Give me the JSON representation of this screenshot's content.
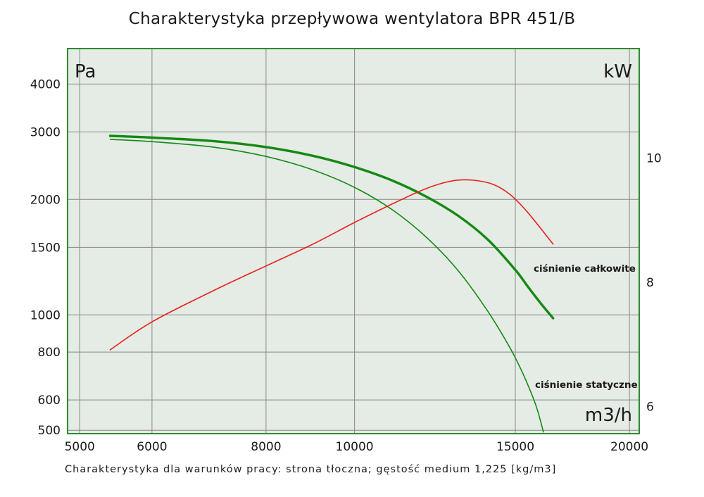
{
  "title": "Charakterystyka przepływowa wentylatora BPR 451/B",
  "footer": "Charakterystyka dla warunków pracy: strona tłoczna; gęstość medium 1,225 [kg/m3]",
  "colors": {
    "plot_background": "#e5ebe5",
    "frame": "#2e8b2e",
    "grid": "#888888",
    "total_pressure": "#138a13",
    "static_pressure": "#138a13",
    "power": "#e8211b"
  },
  "chart_data": {
    "type": "line",
    "title": "Charakterystyka przepływowa wentylatora BPR 451/B",
    "x_scale": "log",
    "y_scale": "log",
    "x_unit_label": "m3/h",
    "y_left_unit_label": "Pa",
    "y_right_unit_label": "kW",
    "xlim": [
      4850,
      20500
    ],
    "ylim": [
      490,
      4950
    ],
    "y2lim": [
      5.55,
      11.75
    ],
    "x_ticks": [
      5000,
      6000,
      8000,
      10000,
      15000,
      20000
    ],
    "x_tick_labels": [
      "5000",
      "6000",
      "8000",
      "10000",
      "15000",
      "20000"
    ],
    "y_ticks": [
      500,
      600,
      800,
      1000,
      1500,
      2000,
      3000,
      4000
    ],
    "y_tick_labels": [
      "500",
      "600",
      "800",
      "1000",
      "1500",
      "2000",
      "3000",
      "4000"
    ],
    "y2_ticks": [
      6,
      8,
      10
    ],
    "y2_tick_labels": [
      "6",
      "8",
      "10"
    ],
    "grid": true,
    "series": [
      {
        "name": "ciśnienie całkowite",
        "axis": "left",
        "x": [
          5400,
          6000,
          7000,
          8000,
          9000,
          10000,
          11000,
          12000,
          13000,
          14000,
          15000,
          15500,
          16000,
          16500
        ],
        "y": [
          2930,
          2900,
          2840,
          2740,
          2600,
          2430,
          2240,
          2030,
          1810,
          1570,
          1310,
          1180,
          1070,
          980
        ]
      },
      {
        "name": "ciśnienie statyczne",
        "axis": "left",
        "x": [
          5400,
          6000,
          7000,
          8000,
          9000,
          10000,
          11000,
          12000,
          13000,
          14000,
          14800,
          15300,
          15800,
          16100
        ],
        "y": [
          2870,
          2830,
          2740,
          2590,
          2390,
          2150,
          1880,
          1590,
          1300,
          1020,
          820,
          700,
          580,
          495
        ]
      },
      {
        "name": "",
        "axis": "right",
        "x": [
          5400,
          6000,
          7000,
          8000,
          9000,
          10000,
          11000,
          12000,
          12800,
          13500,
          14200,
          14800,
          15500,
          16500
        ],
        "y": [
          6.9,
          7.35,
          7.85,
          8.25,
          8.6,
          8.95,
          9.25,
          9.5,
          9.62,
          9.63,
          9.56,
          9.4,
          9.1,
          8.6
        ]
      }
    ]
  }
}
